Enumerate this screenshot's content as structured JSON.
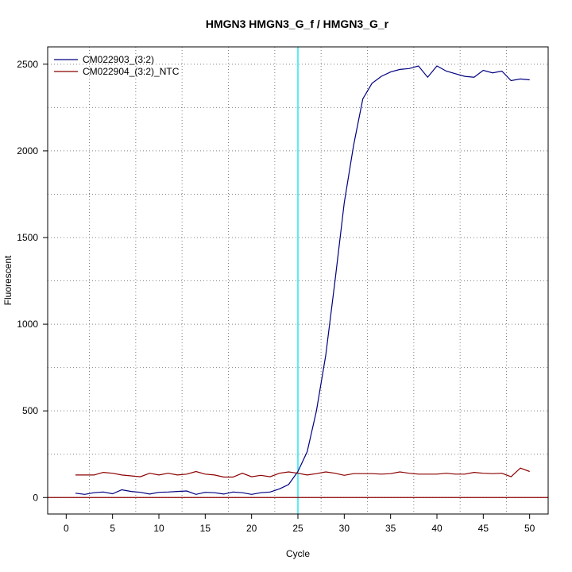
{
  "chart_data": {
    "type": "line",
    "title": "HMGN3  HMGN3_G_f / HMGN3_G_r",
    "xlabel": "Cycle",
    "ylabel": "Fluorescent",
    "xlim": [
      -2,
      52
    ],
    "ylim": [
      -95,
      2600
    ],
    "x_ticks": [
      0,
      5,
      10,
      15,
      20,
      25,
      30,
      35,
      40,
      45,
      50
    ],
    "y_ticks": [
      0,
      500,
      1000,
      1500,
      2000,
      2500
    ],
    "grid": true,
    "grid_x_minor": [
      2.5,
      7.5,
      12.5,
      17.5,
      22.5,
      27.5,
      32.5,
      37.5,
      42.5,
      47.5
    ],
    "grid_y_minor": [
      0,
      250,
      500,
      750,
      1000,
      1250,
      1500,
      1750,
      2000,
      2250,
      2500
    ],
    "threshold_cycle_line": 25,
    "baseline": 0,
    "legend_position": "top-left",
    "x": [
      1,
      2,
      3,
      4,
      5,
      6,
      7,
      8,
      9,
      10,
      11,
      12,
      13,
      14,
      15,
      16,
      17,
      18,
      19,
      20,
      21,
      22,
      23,
      24,
      25,
      26,
      27,
      28,
      29,
      30,
      31,
      32,
      33,
      34,
      35,
      36,
      37,
      38,
      39,
      40,
      41,
      42,
      43,
      44,
      45,
      46,
      47,
      48,
      49,
      50
    ],
    "series": [
      {
        "name": "CM022903_(3:2)",
        "color": "#000080",
        "values": [
          25,
          18,
          28,
          32,
          22,
          45,
          35,
          30,
          20,
          30,
          32,
          35,
          38,
          18,
          30,
          28,
          20,
          32,
          28,
          18,
          28,
          32,
          50,
          75,
          150,
          265,
          500,
          820,
          1250,
          1700,
          2030,
          2300,
          2390,
          2430,
          2455,
          2470,
          2475,
          2490,
          2425,
          2490,
          2460,
          2445,
          2430,
          2425,
          2465,
          2450,
          2460,
          2405,
          2415,
          2410
        ]
      },
      {
        "name": "CM022904_(3:2)_NTC",
        "color": "#8b0000",
        "values": [
          130,
          130,
          130,
          145,
          140,
          130,
          125,
          120,
          140,
          130,
          140,
          130,
          135,
          150,
          135,
          130,
          118,
          118,
          140,
          120,
          128,
          120,
          140,
          148,
          140,
          130,
          138,
          148,
          140,
          128,
          138,
          138,
          138,
          135,
          138,
          148,
          140,
          135,
          135,
          135,
          140,
          135,
          135,
          145,
          140,
          138,
          140,
          120,
          170,
          150
        ]
      }
    ]
  },
  "colors": {
    "threshold_line": "#00e5ee",
    "baseline": "#8b0000",
    "grid": "#808080"
  }
}
